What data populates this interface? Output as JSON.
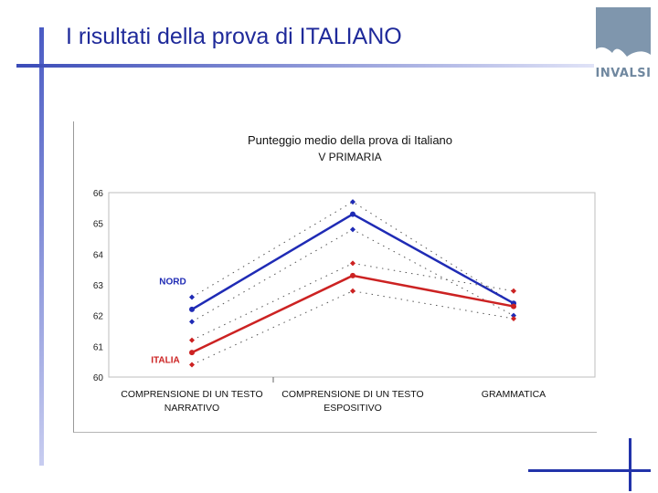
{
  "slide": {
    "title": "I risultati della prova di ITALIANO",
    "logo_text": "INVALSI"
  },
  "colors": {
    "accent": "#2233aa",
    "nord": "#1f2bb5",
    "italia": "#cc2222"
  },
  "chart_data": {
    "type": "line",
    "title": "Punteggio medio della prova di Italiano",
    "subtitle": "V PRIMARIA",
    "categories": [
      [
        "COMPRENSIONE DI UN TESTO",
        "NARRATIVO"
      ],
      [
        "COMPRENSIONE DI UN TESTO",
        "ESPOSITIVO"
      ],
      [
        "GRAMMATICA"
      ]
    ],
    "yticks": [
      60,
      61,
      62,
      63,
      64,
      65,
      66
    ],
    "ylim": [
      60,
      66
    ],
    "xlabel": "",
    "ylabel": "",
    "grid": false,
    "series": [
      {
        "name": "NORD",
        "color": "#1f2bb5",
        "values": [
          62.2,
          65.3,
          62.4
        ],
        "upper": [
          62.6,
          65.7,
          62.4
        ],
        "lower": [
          61.8,
          64.8,
          62.0
        ]
      },
      {
        "name": "ITALIA",
        "color": "#cc2222",
        "values": [
          60.8,
          63.3,
          62.3
        ],
        "upper": [
          61.2,
          63.7,
          62.8
        ],
        "lower": [
          60.4,
          62.8,
          61.9
        ]
      }
    ]
  }
}
